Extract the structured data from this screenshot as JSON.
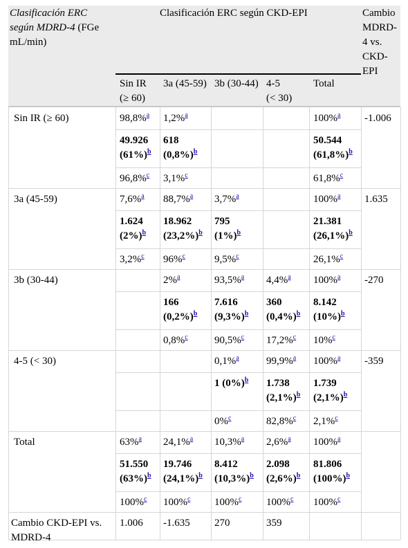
{
  "header": {
    "row_header": "Clasificación ERC según MDRD-4",
    "row_header_unit": " (FGe mL/min)",
    "group_title": "Clasificación ERC según CKD-EPI",
    "change_title": [
      "Cambio",
      "MDRD-",
      "4 vs.",
      "CKD-",
      "EPI"
    ],
    "columns": [
      {
        "line1": "Sin IR",
        "line2": "(≥ 60)"
      },
      {
        "line1": "3a (45-59)",
        "line2": ""
      },
      {
        "line1": "3b (30-44)",
        "line2": ""
      },
      {
        "line1": "4-5",
        "line2": "(< 30)"
      },
      {
        "line1": "Total",
        "line2": ""
      }
    ]
  },
  "rows": [
    {
      "label": "Sin IR (≥ 60)",
      "change": "-1.006",
      "lines": [
        [
          "98,8%|a",
          "1,2%|a",
          "",
          "",
          "100%|a"
        ],
        [
          "49.926|(61%)|b",
          "618|(0,8%)|b",
          "",
          "",
          "50.544|(61,8%)|b"
        ],
        [
          "96,8%|c",
          "3,1%|c",
          "",
          "",
          "61,8%|c"
        ]
      ]
    },
    {
      "label": "3a (45-59)",
      "change": "1.635",
      "lines": [
        [
          "7,6%|a",
          "88,7%|a",
          "3,7%|a",
          "",
          "100%|a"
        ],
        [
          "1.624|(2%)|b",
          "18.962|(23,2%)|b",
          "795|(1%)|b",
          "",
          "21.381|(26,1%)|b"
        ],
        [
          "3,2%|c",
          "96%|c",
          "9,5%|c",
          "",
          "26,1%|c"
        ]
      ]
    },
    {
      "label": "3b (30-44)",
      "change": "-270",
      "lines": [
        [
          "",
          "2%|a",
          "93,5%|a",
          "4,4%|a",
          "100%|a"
        ],
        [
          "",
          "166|(0,2%)|b",
          "7.616|(9,3%)|b",
          "360|(0,4%)|b",
          "8.142|(10%)|b"
        ],
        [
          "",
          "0,8%|c",
          "90,5%|c",
          "17,2%|c",
          "10%|c"
        ]
      ]
    },
    {
      "label": "4-5 (< 30)",
      "change": "-359",
      "lines": [
        [
          "",
          "",
          "0,1%|a",
          "99,9%|a",
          "100%|a"
        ],
        [
          "",
          "",
          "1 (0%)||b",
          "1.738|(2,1%)|b",
          "1.739|(2,1%)|b"
        ],
        [
          "",
          "",
          "0%|c",
          "82,8%|c",
          "2,1%|c"
        ]
      ]
    },
    {
      "label": "Total",
      "change": "",
      "lines": [
        [
          "63%|a",
          "24,1%|a",
          "10,3%|a",
          "2,6%|a",
          "100%|a"
        ],
        [
          "51.550|(63%)|b",
          "19.746|(24,1%)|b",
          "8.412|(10,3%)|b",
          "2.098|(2,6%)|b",
          "81.806|(100%)|b"
        ],
        [
          "100%|c",
          "100%|c",
          "100%|c",
          "100%|c",
          "100%|c"
        ]
      ]
    }
  ],
  "footer": {
    "label": [
      "Cambio CKD-EPI vs.",
      "MDRD-4"
    ],
    "values": [
      "1.006",
      "-1.635",
      "270",
      "359",
      ""
    ]
  }
}
